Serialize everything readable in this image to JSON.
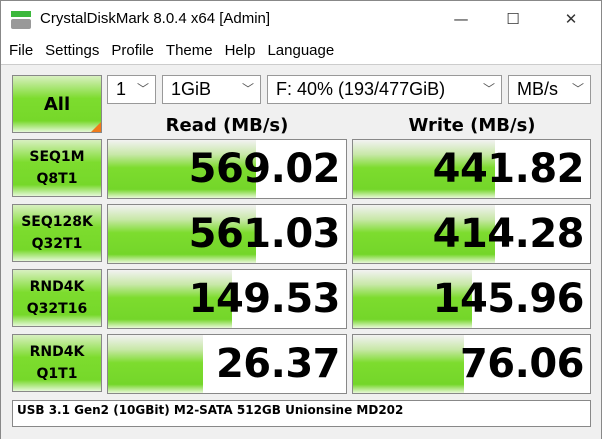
{
  "window": {
    "title": "CrystalDiskMark 8.0.4 x64 [Admin]",
    "minimize": "—",
    "maximize": "☐",
    "close": "✕"
  },
  "menu": [
    "File",
    "Settings",
    "Profile",
    "Theme",
    "Help",
    "Language"
  ],
  "controls": {
    "all_label": "All",
    "count": "1",
    "size": "1GiB",
    "drive": "F: 40% (193/477GiB)",
    "unit": "MB/s"
  },
  "headers": {
    "read": "Read (MB/s)",
    "write": "Write (MB/s)"
  },
  "rows": [
    {
      "l1": "SEQ1M",
      "l2": "Q8T1",
      "read": "569.02",
      "write": "441.82",
      "read_fill": 0.62,
      "write_fill": 0.6
    },
    {
      "l1": "SEQ128K",
      "l2": "Q32T1",
      "read": "561.03",
      "write": "414.28",
      "read_fill": 0.62,
      "write_fill": 0.6
    },
    {
      "l1": "RND4K",
      "l2": "Q32T16",
      "read": "149.53",
      "write": "145.96",
      "read_fill": 0.52,
      "write_fill": 0.5
    },
    {
      "l1": "RND4K",
      "l2": "Q1T1",
      "read": "26.37",
      "write": "76.06",
      "read_fill": 0.4,
      "write_fill": 0.47
    }
  ],
  "comment": "USB 3.1 Gen2 (10GBit) M2-SATA 512GB Unionsine MD202",
  "colors": {
    "accent_green": "#76d82a",
    "corner_orange": "#f07a1a"
  }
}
